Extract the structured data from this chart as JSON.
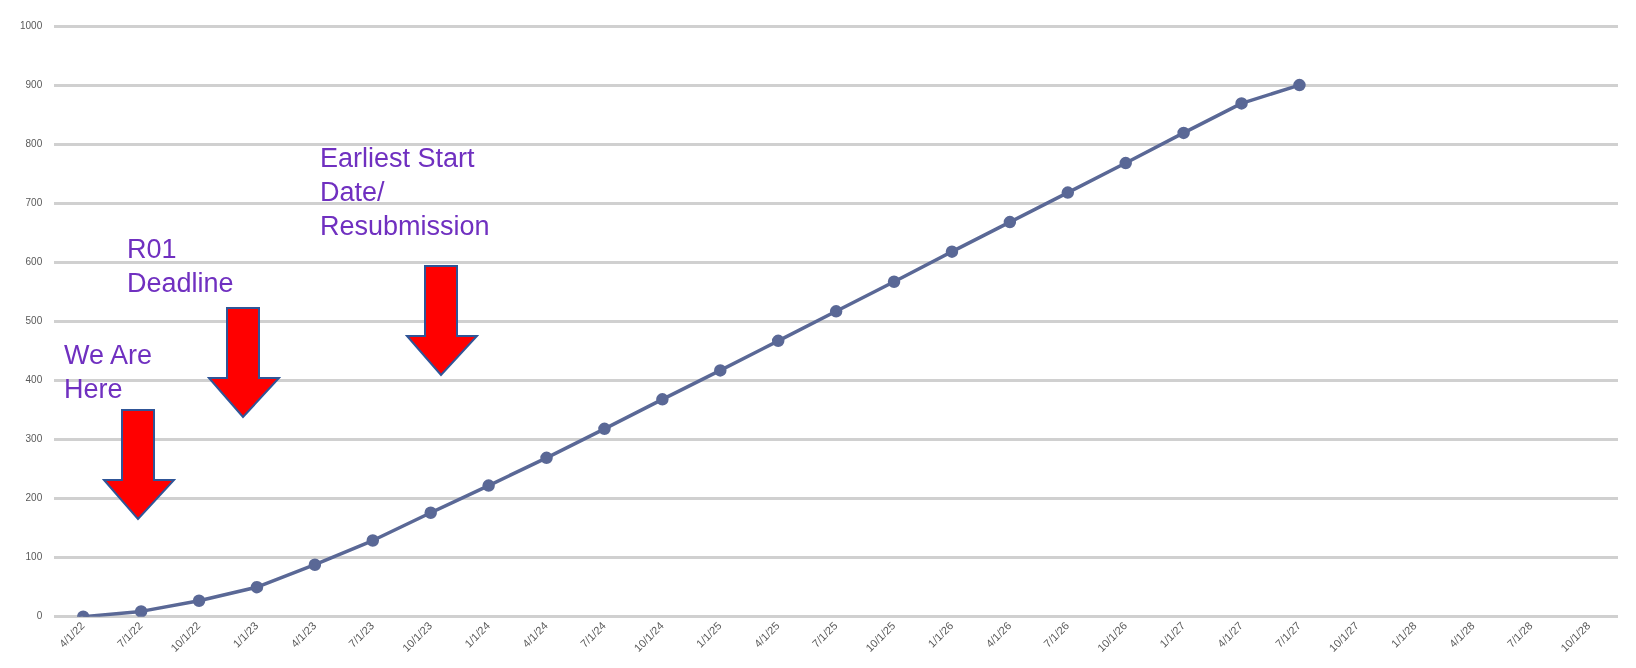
{
  "chart_data": {
    "type": "line",
    "categories": [
      "4/1/22",
      "7/1/22",
      "10/1/22",
      "1/1/23",
      "4/1/23",
      "7/1/23",
      "10/1/23",
      "1/1/24",
      "4/1/24",
      "7/1/24",
      "10/1/24",
      "1/1/25",
      "4/1/25",
      "7/1/25",
      "10/1/25",
      "1/1/26",
      "4/1/26",
      "7/1/26",
      "10/1/26",
      "1/1/27",
      "4/1/27",
      "7/1/27",
      "10/1/27",
      "1/1/28",
      "4/1/28",
      "7/1/28",
      "10/1/28"
    ],
    "series": [
      {
        "color": "#5a6896",
        "values": [
          0,
          9,
          27,
          50,
          88,
          129,
          176,
          222,
          269,
          318,
          368,
          417,
          467,
          517,
          567,
          618,
          668,
          718,
          768,
          819,
          869,
          900,
          null,
          null,
          null,
          null,
          null
        ]
      }
    ],
    "ylim": [
      0,
      1000
    ],
    "yticks": [
      0,
      100,
      200,
      300,
      400,
      500,
      600,
      700,
      800,
      900,
      1000
    ],
    "grid": "y",
    "legend": false,
    "marker": "circle",
    "line_style": "solid",
    "annotations": [
      "We Are Here",
      "R01 Deadline",
      "Earliest Start Date/ Resubmission"
    ]
  }
}
